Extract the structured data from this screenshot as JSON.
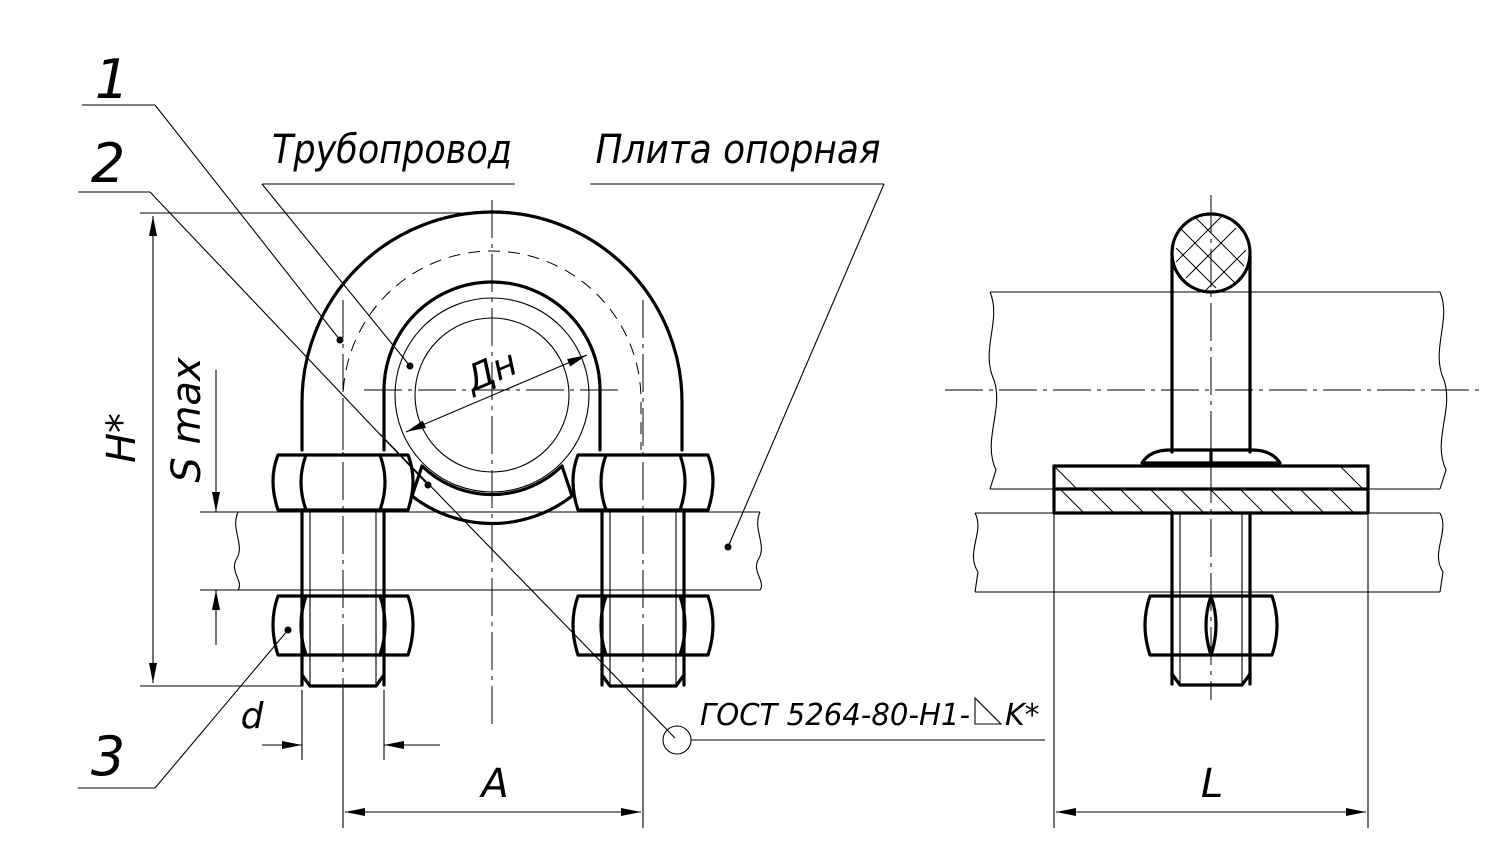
{
  "callouts": {
    "part1": "1",
    "part2": "2",
    "part3": "3",
    "pipeline": "Трубопровод",
    "plate": "Плита опорная"
  },
  "dimensions": {
    "outer_diameter": "Дн",
    "height": "H*",
    "gap": "S max",
    "thread": "d",
    "span": "A",
    "length": "L"
  },
  "weld": {
    "standard": "ГОСТ 5264-80-Н1-",
    "leg": "K*"
  }
}
